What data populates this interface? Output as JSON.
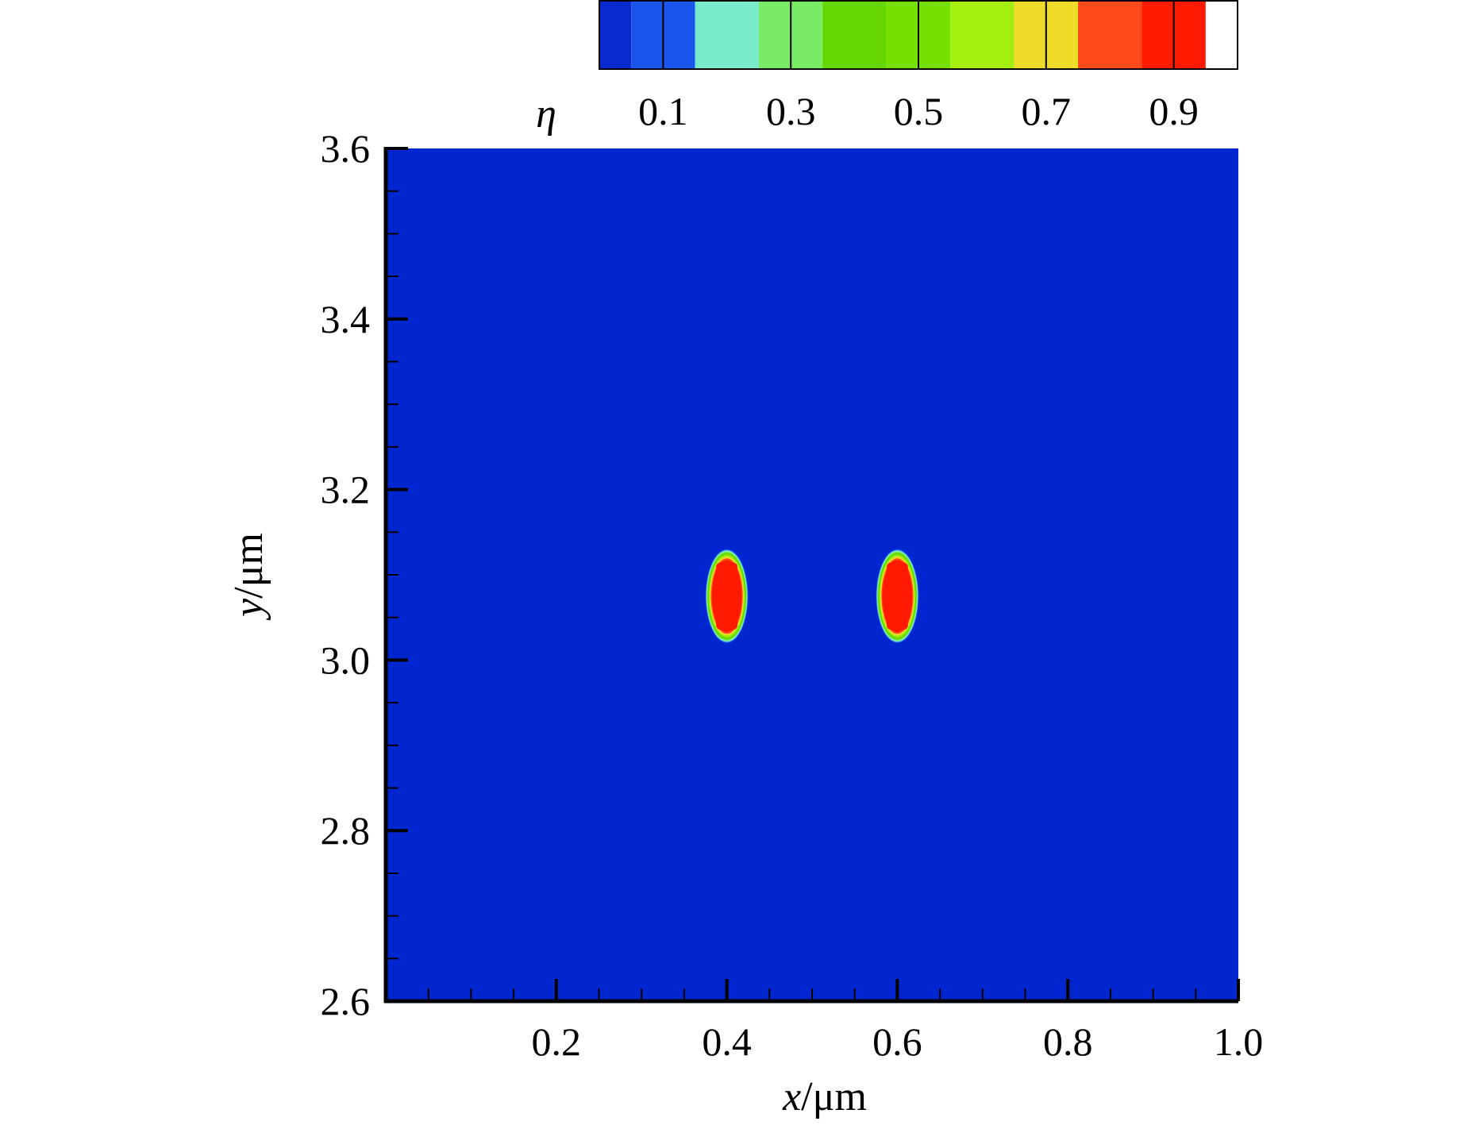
{
  "chart_data": {
    "type": "heatmap",
    "x_axis": {
      "label_var": "x",
      "label_unit": "/μm",
      "range": [
        0.0,
        1.0
      ],
      "major_ticks": [
        0.2,
        0.4,
        0.6,
        0.8,
        1.0
      ],
      "tick_labels": [
        "0.2",
        "0.4",
        "0.6",
        "0.8",
        "1.0"
      ],
      "minor_step": 0.05
    },
    "y_axis": {
      "label_var": "y",
      "label_unit": "/μm",
      "range": [
        2.6,
        3.6
      ],
      "major_ticks": [
        2.6,
        2.8,
        3.0,
        3.2,
        3.4,
        3.6
      ],
      "tick_labels": [
        "2.6",
        "2.8",
        "3.0",
        "3.2",
        "3.4",
        "3.6"
      ],
      "minor_step": 0.05
    },
    "colorbar": {
      "label": "η",
      "levels": [
        0.0,
        0.05,
        0.15,
        0.25,
        0.35,
        0.45,
        0.55,
        0.65,
        0.75,
        0.85,
        0.95,
        1.0
      ],
      "colors": [
        "#0a2ad0",
        "#1a56ec",
        "#78ecc8",
        "#7aeb64",
        "#66d600",
        "#76e000",
        "#a4ee10",
        "#eedc28",
        "#ff4a1c",
        "#ff1a00"
      ],
      "tick_values": [
        0.1,
        0.3,
        0.5,
        0.7,
        0.9
      ],
      "tick_labels": [
        "0.1",
        "0.3",
        "0.5",
        "0.7",
        "0.9"
      ]
    },
    "background_value": 0.0,
    "background_color": "#0026d0",
    "features": [
      {
        "name": "particle-left",
        "center_x": 0.4,
        "center_y": 3.075,
        "half_width_x": 0.025,
        "half_height_y": 0.055,
        "peak_value": 1.0
      },
      {
        "name": "particle-right",
        "center_x": 0.6,
        "center_y": 3.075,
        "half_width_x": 0.025,
        "half_height_y": 0.055,
        "peak_value": 1.0
      }
    ],
    "grid": false,
    "legend": "colorbar-top"
  }
}
